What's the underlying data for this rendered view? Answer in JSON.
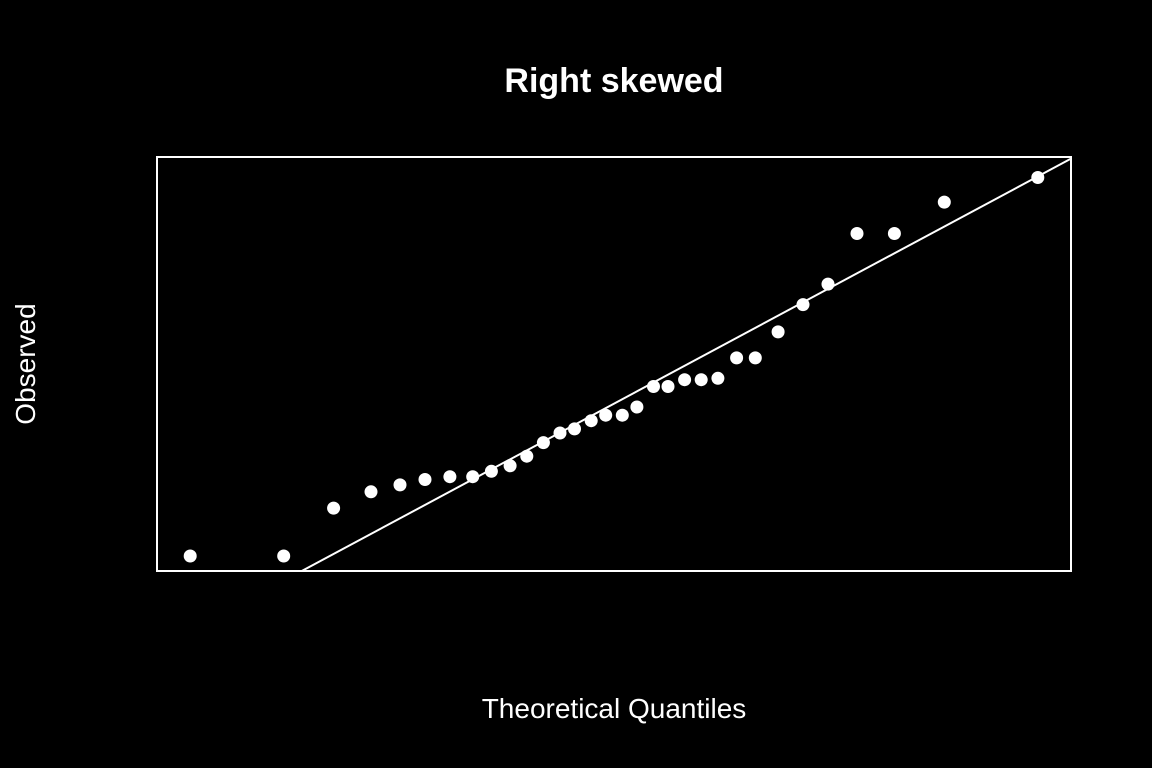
{
  "chart_data": {
    "type": "scatter",
    "title": "Right skewed",
    "xlabel": "Theoretical Quantiles",
    "ylabel": "Observed",
    "xlim": [
      -2.2,
      2.2
    ],
    "ylim": [
      -0.3,
      2.73
    ],
    "grid": false,
    "ticks_shown": false,
    "colors": {
      "background": "#000000",
      "foreground": "#ffffff",
      "points": "#ffffff",
      "line": "#ffffff"
    },
    "points": [
      {
        "x": -2.04,
        "y": -0.19
      },
      {
        "x": -1.59,
        "y": -0.19
      },
      {
        "x": -1.35,
        "y": 0.16
      },
      {
        "x": -1.17,
        "y": 0.28
      },
      {
        "x": -1.03,
        "y": 0.33
      },
      {
        "x": -0.91,
        "y": 0.37
      },
      {
        "x": -0.79,
        "y": 0.39
      },
      {
        "x": -0.68,
        "y": 0.39
      },
      {
        "x": -0.59,
        "y": 0.43
      },
      {
        "x": -0.5,
        "y": 0.47
      },
      {
        "x": -0.42,
        "y": 0.54
      },
      {
        "x": -0.34,
        "y": 0.64
      },
      {
        "x": -0.26,
        "y": 0.71
      },
      {
        "x": -0.19,
        "y": 0.74
      },
      {
        "x": -0.11,
        "y": 0.8
      },
      {
        "x": -0.04,
        "y": 0.84
      },
      {
        "x": 0.04,
        "y": 0.84
      },
      {
        "x": 0.11,
        "y": 0.9
      },
      {
        "x": 0.19,
        "y": 1.05
      },
      {
        "x": 0.26,
        "y": 1.05
      },
      {
        "x": 0.34,
        "y": 1.1
      },
      {
        "x": 0.42,
        "y": 1.1
      },
      {
        "x": 0.5,
        "y": 1.11
      },
      {
        "x": 0.59,
        "y": 1.26
      },
      {
        "x": 0.68,
        "y": 1.26
      },
      {
        "x": 0.79,
        "y": 1.45
      },
      {
        "x": 0.91,
        "y": 1.65
      },
      {
        "x": 1.03,
        "y": 1.8
      },
      {
        "x": 1.17,
        "y": 2.17
      },
      {
        "x": 1.35,
        "y": 2.17
      },
      {
        "x": 1.59,
        "y": 2.4
      },
      {
        "x": 2.04,
        "y": 2.58
      }
    ],
    "reference_line": {
      "intercept": 0.925,
      "slope": 0.815
    }
  }
}
